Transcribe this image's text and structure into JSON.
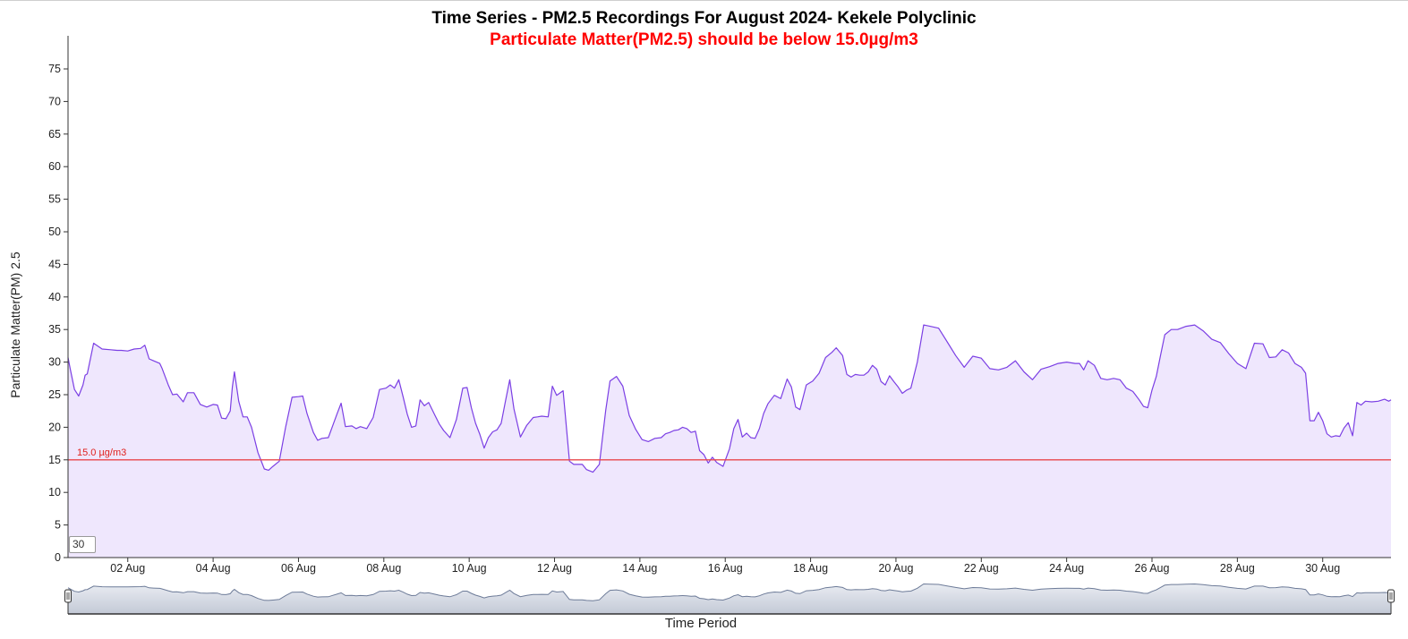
{
  "chart_data": {
    "type": "area",
    "title": "Time Series - PM2.5 Recordings For August 2024- Kekele Polyclinic",
    "subtitle": "Particulate Matter(PM2.5) should be below 15.0µg/m3",
    "ylabel": "Particulate Matter(PM) 2.5",
    "xlabel": "Time Period",
    "ylim": [
      0,
      80
    ],
    "yticks": [
      0,
      5,
      10,
      15,
      20,
      25,
      30,
      35,
      40,
      45,
      50,
      55,
      60,
      65,
      70,
      75
    ],
    "xlim_days": [
      31.6,
      62.6
    ],
    "xticks": [
      {
        "label": "02 Aug",
        "day": 33
      },
      {
        "label": "04 Aug",
        "day": 35
      },
      {
        "label": "06 Aug",
        "day": 37
      },
      {
        "label": "08 Aug",
        "day": 39
      },
      {
        "label": "10 Aug",
        "day": 41
      },
      {
        "label": "12 Aug",
        "day": 43
      },
      {
        "label": "14 Aug",
        "day": 45
      },
      {
        "label": "16 Aug",
        "day": 47
      },
      {
        "label": "18 Aug",
        "day": 49
      },
      {
        "label": "20 Aug",
        "day": 51
      },
      {
        "label": "22 Aug",
        "day": 53
      },
      {
        "label": "24 Aug",
        "day": 55
      },
      {
        "label": "26 Aug",
        "day": 57
      },
      {
        "label": "28 Aug",
        "day": 59
      },
      {
        "label": "30 Aug",
        "day": 61
      }
    ],
    "threshold": {
      "value": 15.0,
      "label": "15.0 µg/m3",
      "color": "#e8474c"
    },
    "rolling_period": "30",
    "grid": false,
    "legend": "none",
    "colors": {
      "line": "#7b3fe4",
      "fill": "#efe7fd",
      "navigator_fill": "#c3c9d6",
      "navigator_line": "#6d7b98"
    },
    "series": [
      {
        "x": [
          31.6,
          31.65,
          31.75,
          31.85,
          31.95,
          32.0,
          32.05,
          32.2,
          32.4,
          32.6,
          32.75,
          32.85,
          33.0,
          33.15,
          33.3,
          33.4,
          33.5,
          33.6,
          33.75,
          33.8,
          33.95,
          34.05,
          34.15,
          34.3,
          34.4,
          34.55,
          34.7,
          34.85,
          35.0,
          35.1,
          35.2,
          35.3,
          35.4,
          35.45,
          35.5,
          35.6,
          35.7,
          35.8,
          35.9,
          36.05,
          36.2,
          36.3,
          36.4,
          36.55,
          36.7,
          36.85,
          37.0,
          37.1,
          37.2,
          37.35,
          37.45,
          37.55,
          37.7,
          37.8,
          37.9,
          38.0,
          38.1,
          38.25,
          38.35,
          38.45,
          38.6,
          38.75,
          38.9,
          39.05,
          39.15,
          39.25,
          39.35,
          39.45,
          39.55,
          39.65,
          39.75,
          39.85,
          39.95,
          40.05,
          40.2,
          40.3,
          40.4,
          40.55,
          40.7,
          40.85,
          40.95,
          41.05,
          41.15,
          41.25,
          41.35,
          41.45,
          41.55,
          41.65,
          41.75,
          41.85,
          41.95,
          42.05,
          42.2,
          42.35,
          42.5,
          42.6,
          42.7,
          42.85,
          42.95,
          43.05,
          43.2,
          43.35,
          43.45,
          43.55,
          43.65,
          43.75,
          43.9,
          44.05,
          44.2,
          44.3,
          44.45,
          44.6,
          44.75,
          44.9,
          45.05,
          45.2,
          45.35,
          45.5,
          45.6,
          45.7,
          45.8,
          45.9,
          46.0,
          46.1,
          46.2,
          46.3,
          46.4,
          46.5,
          46.6,
          46.7,
          46.8,
          46.95,
          47.1,
          47.2,
          47.3,
          47.4,
          47.5,
          47.6,
          47.7,
          47.8,
          47.9,
          48.0,
          48.15,
          48.3,
          48.45,
          48.55,
          48.65,
          48.75,
          48.9,
          49.05,
          49.2,
          49.35,
          49.5,
          49.6,
          49.75,
          49.85,
          49.95,
          50.05,
          50.15,
          50.25,
          50.35,
          50.45,
          50.55,
          50.65,
          50.75,
          50.85,
          50.95,
          51.05,
          51.15,
          51.25,
          51.35,
          51.5,
          51.65,
          51.8,
          52.0,
          52.2,
          52.4,
          52.6,
          52.8,
          53.0,
          53.2,
          53.4,
          53.6,
          53.8,
          54.0,
          54.2,
          54.4,
          54.6,
          54.8,
          55.0,
          55.2,
          55.3,
          55.4,
          55.5,
          55.65,
          55.8,
          55.95,
          56.1,
          56.25,
          56.4,
          56.55,
          56.7,
          56.8,
          56.9,
          57.0,
          57.1,
          57.2,
          57.3,
          57.45,
          57.6,
          57.8,
          58.0,
          58.2,
          58.4,
          58.6,
          58.8,
          59.0,
          59.2,
          59.4,
          59.6,
          59.75,
          59.9,
          60.05,
          60.2,
          60.35,
          60.5,
          60.6,
          60.7,
          60.8,
          60.9,
          61.0,
          61.1,
          61.2,
          61.3,
          61.4,
          61.5,
          61.6,
          61.7,
          61.8,
          61.9,
          62.0,
          62.15,
          62.3,
          62.45,
          62.55,
          62.6
        ],
        "y": [
          30.7,
          29.0,
          25.8,
          24.8,
          26.5,
          28.0,
          28.2,
          32.9,
          32.0,
          31.9,
          31.8,
          31.8,
          31.7,
          32.0,
          32.1,
          32.6,
          30.5,
          30.2,
          29.8,
          29.1,
          26.5,
          25.0,
          25.1,
          23.9,
          25.3,
          25.3,
          23.5,
          23.1,
          23.5,
          23.4,
          21.4,
          21.3,
          22.5,
          26.2,
          28.5,
          24.0,
          21.6,
          21.6,
          20.0,
          16.1,
          13.6,
          13.4,
          14.0,
          14.8,
          20.1,
          24.6,
          24.7,
          24.8,
          22.1,
          19.2,
          18.0,
          18.3,
          18.4,
          20.2,
          22.0,
          23.7,
          20.1,
          20.2,
          19.8,
          20.1,
          19.8,
          21.5,
          25.8,
          26.0,
          26.5,
          26.0,
          27.3,
          24.7,
          22.0,
          20.0,
          20.2,
          24.2,
          23.3,
          23.8,
          21.8,
          20.5,
          19.5,
          18.4,
          21.2,
          26.0,
          26.1,
          23.0,
          20.6,
          18.9,
          16.8,
          18.4,
          19.3,
          19.6,
          20.6,
          24.0,
          27.3,
          22.8,
          18.5,
          20.3,
          21.5,
          21.6,
          21.7,
          21.6,
          26.3,
          24.9,
          25.6,
          14.8,
          14.3,
          14.3,
          14.3,
          13.5,
          13.1,
          14.3,
          22.6,
          27.1,
          27.8,
          26.3,
          21.8,
          19.7,
          18.1,
          17.8,
          18.3,
          18.4,
          19.0,
          19.2,
          19.5,
          19.6,
          20.0,
          19.8,
          19.2,
          19.4,
          16.4,
          15.8,
          14.5,
          15.4,
          14.6,
          14.0,
          16.7,
          19.8,
          21.2,
          18.5,
          19.1,
          18.4,
          18.3,
          19.8,
          22.1,
          23.6,
          24.9,
          24.4,
          27.4,
          26.2,
          23.1,
          22.7,
          26.5,
          27.1,
          28.3,
          30.7,
          31.5,
          32.2,
          31.0,
          28.1,
          27.7,
          28.1,
          28.0,
          28.0,
          28.5,
          29.5,
          28.9,
          27.0,
          26.5,
          27.9,
          27.0,
          26.2,
          25.2,
          25.7,
          26.0,
          30.0,
          35.7,
          35.5,
          35.2,
          33.1,
          31.0,
          29.2,
          30.9,
          30.6,
          29.0,
          28.8,
          29.2,
          30.2,
          28.5,
          27.3,
          28.9,
          29.3,
          29.8,
          30.0,
          29.8,
          29.8,
          28.8,
          30.2,
          29.5,
          27.5,
          27.3,
          27.5,
          27.3,
          26.0,
          25.5,
          24.2,
          23.2,
          23.0,
          25.7,
          27.8,
          31.0,
          34.2,
          35.0,
          35.0,
          35.5,
          35.7,
          34.8,
          33.5,
          33.0,
          31.3,
          29.8,
          29.0,
          32.9,
          32.8,
          30.7,
          30.8,
          31.9,
          31.4,
          29.8,
          29.2,
          28.3,
          21.0,
          21.0,
          22.3,
          21.0,
          19.0,
          18.5,
          18.7,
          18.6,
          19.9,
          20.7,
          18.7,
          23.8,
          23.4,
          24.0,
          23.9,
          24.0,
          24.3,
          24.0,
          24.2
        ]
      }
    ]
  }
}
